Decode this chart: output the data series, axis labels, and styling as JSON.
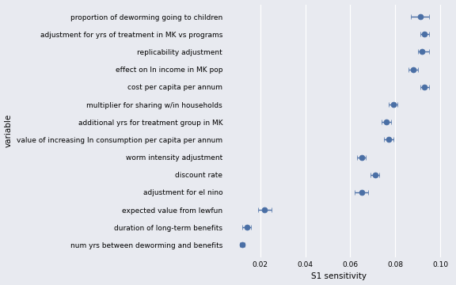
{
  "variables": [
    "proportion of deworming going to children",
    "adjustment for yrs of treatment in MK vs programs",
    "replicability adjustment",
    "effect on ln income in MK pop",
    "cost per capita per annum",
    "multiplier for sharing w/in households",
    "additional yrs for treatment group in MK",
    "value of increasing ln consumption per capita per annum",
    "worm intensity adjustment",
    "discount rate",
    "adjustment for el nino",
    "expected value from lewfun",
    "duration of long-term benefits",
    "num yrs between deworming and benefits"
  ],
  "s1_values": [
    0.091,
    0.093,
    0.092,
    0.088,
    0.093,
    0.079,
    0.076,
    0.077,
    0.065,
    0.071,
    0.065,
    0.022,
    0.014,
    0.012
  ],
  "s1_conf_low": [
    0.004,
    0.002,
    0.002,
    0.002,
    0.002,
    0.002,
    0.002,
    0.002,
    0.002,
    0.002,
    0.003,
    0.003,
    0.002,
    0.001
  ],
  "s1_conf_high": [
    0.004,
    0.002,
    0.003,
    0.002,
    0.002,
    0.002,
    0.002,
    0.002,
    0.002,
    0.002,
    0.003,
    0.003,
    0.002,
    0.001
  ],
  "xlabel": "S1 sensitivity",
  "ylabel": "variable",
  "xlim": [
    0.005,
    0.105
  ],
  "xticks": [
    0.02,
    0.04,
    0.06,
    0.08,
    0.1
  ],
  "xtick_labels": [
    "0.02",
    "0.04",
    "0.06",
    "0.08",
    "0.10"
  ],
  "marker_color": "#4a6fa5",
  "marker_size": 5,
  "bg_color": "#e8eaf0",
  "fig_bg_color": "#e8eaf0",
  "font_size": 6.5,
  "axis_label_fontsize": 7.5
}
